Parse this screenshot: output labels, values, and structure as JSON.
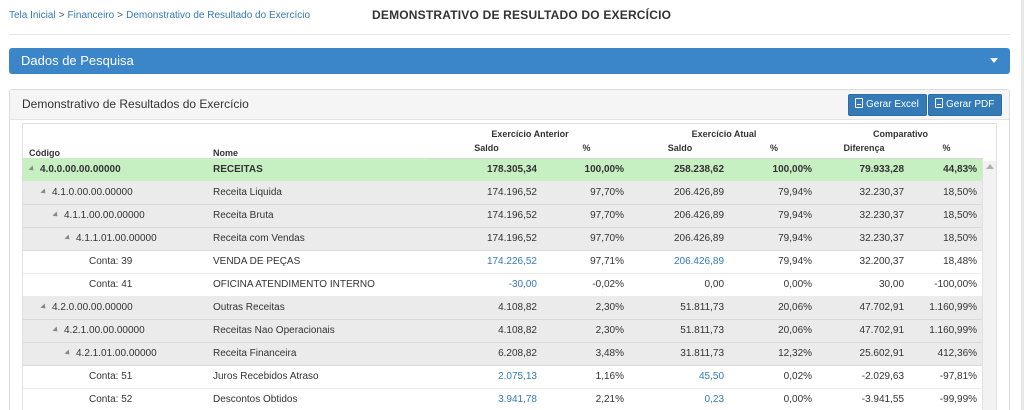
{
  "breadcrumb": {
    "home": "Tela Inicial",
    "finance": "Financeiro",
    "current": "Demonstrativo de Resultado do Exercício",
    "sep": ">"
  },
  "page_title": "DEMONSTRATIVO DE RESULTADO DO EXERCÍCIO",
  "search_panel": {
    "label": "Dados de Pesquisa"
  },
  "report_panel": {
    "title": "Demonstrativo de Resultados do Exercício",
    "excel_label": "Gerar Excel",
    "pdf_label": "Gerar PDF"
  },
  "table": {
    "headers": {
      "code": "Código",
      "name": "Nome",
      "prev_group": "Exercício Anterior",
      "curr_group": "Exercício Atual",
      "comp_group": "Comparativo",
      "saldo": "Saldo",
      "pct": "%",
      "diff": "Diferença"
    },
    "rows": [
      {
        "type": "total",
        "level": 0,
        "code": "4.0.0.00.00.00000",
        "name": "RECEITAS",
        "prev_saldo": "178.305,34",
        "prev_pct": "100,00%",
        "curr_saldo": "258.238,62",
        "curr_pct": "100,00%",
        "diff": "79.933,28",
        "diff_pct": "44,83%",
        "link": false
      },
      {
        "type": "grey",
        "level": 1,
        "code": "4.1.0.00.00.00000",
        "name": "Receita Liquida",
        "prev_saldo": "174.196,52",
        "prev_pct": "97,70%",
        "curr_saldo": "206.426,89",
        "curr_pct": "79,94%",
        "diff": "32.230,37",
        "diff_pct": "18,50%",
        "link": false
      },
      {
        "type": "grey",
        "level": 2,
        "code": "4.1.1.00.00.00000",
        "name": "Receita Bruta",
        "prev_saldo": "174.196,52",
        "prev_pct": "97,70%",
        "curr_saldo": "206.426,89",
        "curr_pct": "79,94%",
        "diff": "32.230,37",
        "diff_pct": "18,50%",
        "link": false
      },
      {
        "type": "grey",
        "level": 3,
        "code": "4.1.1.01.00.00000",
        "name": "Receita com Vendas",
        "prev_saldo": "174.196,52",
        "prev_pct": "97,70%",
        "curr_saldo": "206.426,89",
        "curr_pct": "79,94%",
        "diff": "32.230,37",
        "diff_pct": "18,50%",
        "link": false
      },
      {
        "type": "white",
        "level": 4,
        "code": "Conta: 39",
        "name": "VENDA DE PEÇAS",
        "prev_saldo": "174.226,52",
        "prev_pct": "97,71%",
        "curr_saldo": "206.426,89",
        "curr_pct": "79,94%",
        "diff": "32.200,37",
        "diff_pct": "18,48%",
        "link": true
      },
      {
        "type": "white",
        "level": 4,
        "code": "Conta: 41",
        "name": "OFICINA ATENDIMENTO INTERNO",
        "prev_saldo": "-30,00",
        "prev_pct": "-0,02%",
        "curr_saldo": "0,00",
        "curr_pct": "0,00%",
        "diff": "30,00",
        "diff_pct": "-100,00%",
        "link": true,
        "curr_link": false
      },
      {
        "type": "grey",
        "level": 1,
        "code": "4.2.0.00.00.00000",
        "name": "Outras Receitas",
        "prev_saldo": "4.108,82",
        "prev_pct": "2,30%",
        "curr_saldo": "51.811,73",
        "curr_pct": "20,06%",
        "diff": "47.702,91",
        "diff_pct": "1.160,99%",
        "link": false
      },
      {
        "type": "grey",
        "level": 2,
        "code": "4.2.1.00.00.00000",
        "name": "Receitas Nao Operacionais",
        "prev_saldo": "4.108,82",
        "prev_pct": "2,30%",
        "curr_saldo": "51.811,73",
        "curr_pct": "20,06%",
        "diff": "47.702,91",
        "diff_pct": "1.160,99%",
        "link": false
      },
      {
        "type": "grey",
        "level": 3,
        "code": "4.2.1.01.00.00000",
        "name": "Receita Financeira",
        "prev_saldo": "6.208,82",
        "prev_pct": "3,48%",
        "curr_saldo": "31.811,73",
        "curr_pct": "12,32%",
        "diff": "25.602,91",
        "diff_pct": "412,36%",
        "link": false
      },
      {
        "type": "white",
        "level": 4,
        "code": "Conta: 51",
        "name": "Juros Recebidos Atraso",
        "prev_saldo": "2.075,13",
        "prev_pct": "1,16%",
        "curr_saldo": "45,50",
        "curr_pct": "0,02%",
        "diff": "-2.029,63",
        "diff_pct": "-97,81%",
        "link": true
      },
      {
        "type": "white",
        "level": 4,
        "code": "Conta: 52",
        "name": "Descontos Obtidos",
        "prev_saldo": "3.941,78",
        "prev_pct": "2,21%",
        "curr_saldo": "0,23",
        "curr_pct": "0,00%",
        "diff": "-3.941,55",
        "diff_pct": "-99,99%",
        "link": true
      }
    ]
  }
}
